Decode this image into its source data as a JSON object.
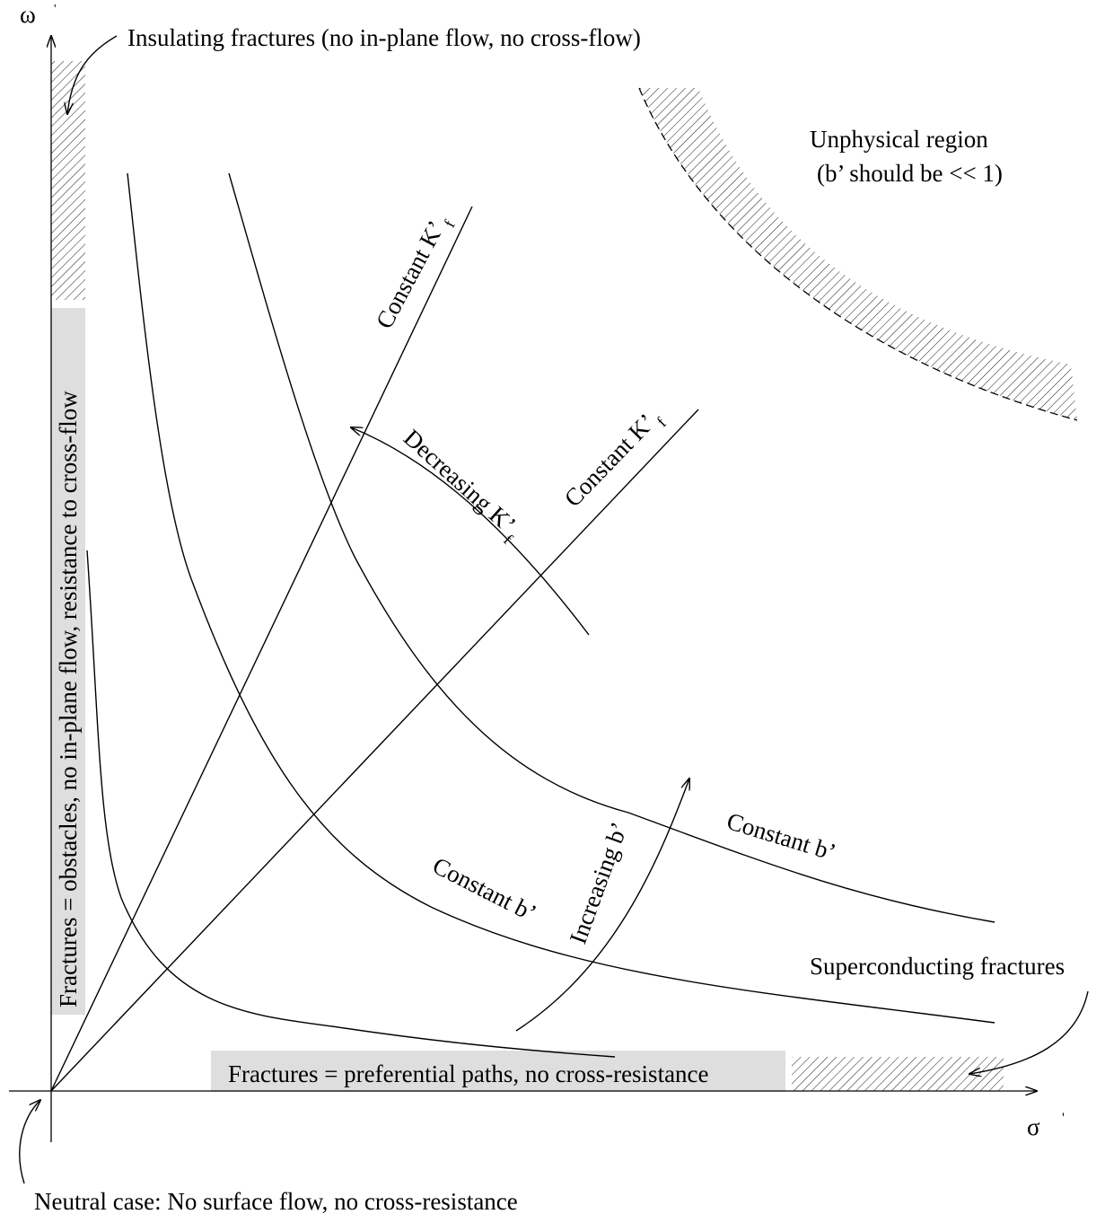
{
  "axes": {
    "y_label": "ω",
    "y_prime": "'",
    "x_label": "σ",
    "x_prime": "'"
  },
  "annotations": {
    "insulating": "Insulating fractures (no in-plane flow, no cross-flow)",
    "unphysical_1": "Unphysical region",
    "unphysical_2": "(b’ should be << 1)",
    "obstacles": "Fractures = obstacles, no in-plane flow, resistance to cross-flow",
    "preferential": "Fractures = preferential paths, no cross-resistance",
    "superconducting": "Superconducting fractures",
    "neutral": "Neutral case: No surface flow, no cross-resistance"
  },
  "lines": {
    "constant_kf_1": "Constant K’",
    "constant_kf_1_sub": "f",
    "constant_kf_2": "Constant K’",
    "constant_kf_2_sub": "f",
    "decreasing_kf": "Decreasing K’",
    "decreasing_kf_sub": "f",
    "increasing_b": "Increasing b’",
    "constant_b_1": "Constant b’",
    "constant_b_2": "Constant b’"
  }
}
